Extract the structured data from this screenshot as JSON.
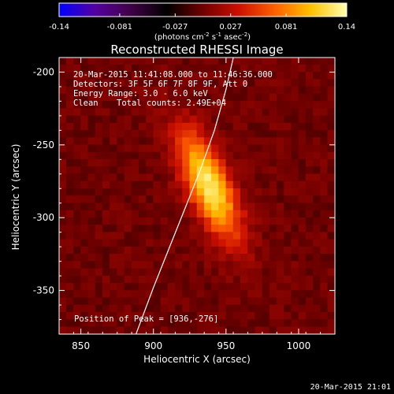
{
  "chart_data": {
    "type": "heatmap",
    "title": "Reconstructed RHESSI Image",
    "xlabel": "Heliocentric X (arcsec)",
    "ylabel": "Heliocentric Y (arcsec)",
    "xlim": [
      835,
      1025
    ],
    "ylim": [
      -380,
      -190
    ],
    "x_ticks": [
      "850",
      "900",
      "950",
      "1000"
    ],
    "x_tick_values": [
      850,
      900,
      950,
      1000
    ],
    "y_ticks": [
      "-200",
      "-250",
      "-300",
      "-350"
    ],
    "y_tick_values": [
      -200,
      -250,
      -300,
      -350
    ],
    "colorbar": {
      "range": [
        -0.14,
        0.14
      ],
      "ticks": [
        "-0.14",
        "-0.081",
        "-0.027",
        "0.027",
        "0.081",
        "0.14"
      ],
      "tick_values": [
        -0.14,
        -0.081,
        -0.027,
        0.027,
        0.081,
        0.14
      ],
      "unit_label": "(photons cm-2 s-1 asec-2)",
      "colormap": [
        "#0000ff",
        "#5500a0",
        "#400045",
        "#000000",
        "#700000",
        "#cc1000",
        "#ff6000",
        "#ffc000",
        "#ffffb0"
      ]
    },
    "annotations": {
      "time_range": "20-Mar-2015 11:41:08.000 to 11:46:36.000",
      "detectors": "Detectors: 3F 5F 6F 7F 8F 9F, Att 0",
      "energy": "Energy Range: 3.0 - 6.0 keV",
      "clean_label": "Clean",
      "counts": "Total counts: 2.49E+04",
      "peak": "Position of Peak = [936,-276]"
    },
    "peak_position": [
      936,
      -276
    ],
    "limb_curve": [
      [
        888,
        -380
      ],
      [
        900,
        -348
      ],
      [
        912,
        -318
      ],
      [
        920,
        -298
      ],
      [
        932,
        -268
      ],
      [
        942,
        -240
      ],
      [
        950,
        -212
      ],
      [
        955,
        -190
      ]
    ],
    "timestamp": "20-Mar-2015 21:01"
  }
}
